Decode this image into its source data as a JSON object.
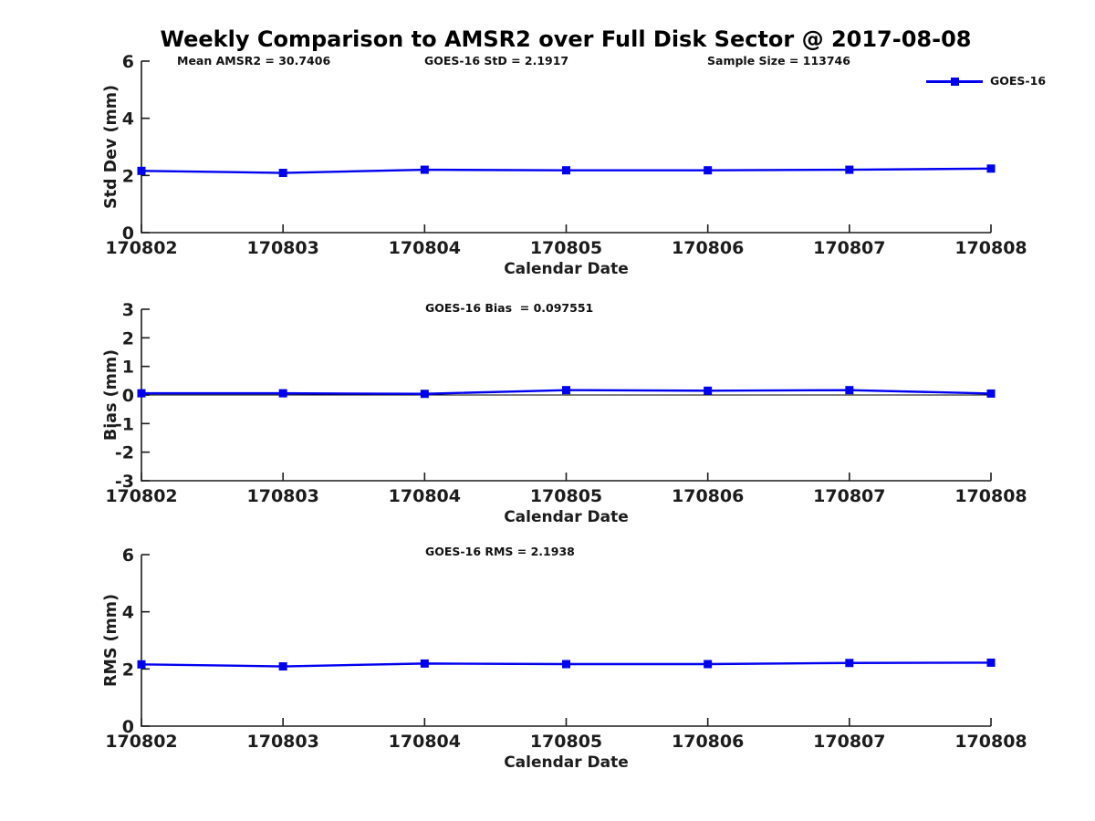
{
  "title": "Weekly Comparison to AMSR2 over Full Disk Sector @ 2017-08-08",
  "header_stats": {
    "mean_amsr2": "Mean AMSR2 = 30.7406",
    "goes_std": "GOES-16 StD = 2.1917",
    "sample_size": "Sample Size = 113746"
  },
  "legend": {
    "label": "GOES-16",
    "position": "top-right",
    "marker": "filled-square",
    "color": "#0000f0"
  },
  "colors": {
    "line": "#0000f0",
    "axis": "#1c1c1c",
    "zero_line": "#000000",
    "background": "#ffffff"
  },
  "chart_data": [
    {
      "type": "line",
      "name": "std-dev",
      "title": "",
      "ylabel": "Std Dev (mm)",
      "xlabel": "Calendar Date",
      "ylim": [
        0,
        6
      ],
      "yticks": [
        0,
        2,
        4,
        6
      ],
      "grid": false,
      "zero_line": false,
      "categories": [
        "170802",
        "170803",
        "170804",
        "170805",
        "170806",
        "170807",
        "170808"
      ],
      "series": [
        {
          "name": "GOES-16",
          "values": [
            2.16,
            2.09,
            2.2,
            2.18,
            2.18,
            2.2,
            2.24
          ]
        }
      ]
    },
    {
      "type": "line",
      "name": "bias",
      "subtitle": "GOES-16 Bias  = 0.097551",
      "ylabel": "Bias (mm)",
      "xlabel": "Calendar Date",
      "ylim": [
        -3,
        3
      ],
      "yticks": [
        -3,
        -2,
        -1,
        0,
        1,
        2,
        3
      ],
      "grid": false,
      "zero_line": true,
      "categories": [
        "170802",
        "170803",
        "170804",
        "170805",
        "170806",
        "170807",
        "170808"
      ],
      "series": [
        {
          "name": "GOES-16",
          "values": [
            0.06,
            0.06,
            0.04,
            0.17,
            0.15,
            0.17,
            0.05
          ]
        }
      ]
    },
    {
      "type": "line",
      "name": "rms",
      "subtitle": "GOES-16 RMS = 2.1938",
      "ylabel": "RMS (mm)",
      "xlabel": "Calendar Date",
      "ylim": [
        0,
        6
      ],
      "yticks": [
        0,
        2,
        4,
        6
      ],
      "grid": false,
      "zero_line": false,
      "categories": [
        "170802",
        "170803",
        "170804",
        "170805",
        "170806",
        "170807",
        "170808"
      ],
      "series": [
        {
          "name": "GOES-16",
          "values": [
            2.16,
            2.09,
            2.19,
            2.17,
            2.17,
            2.21,
            2.22
          ]
        }
      ]
    }
  ]
}
